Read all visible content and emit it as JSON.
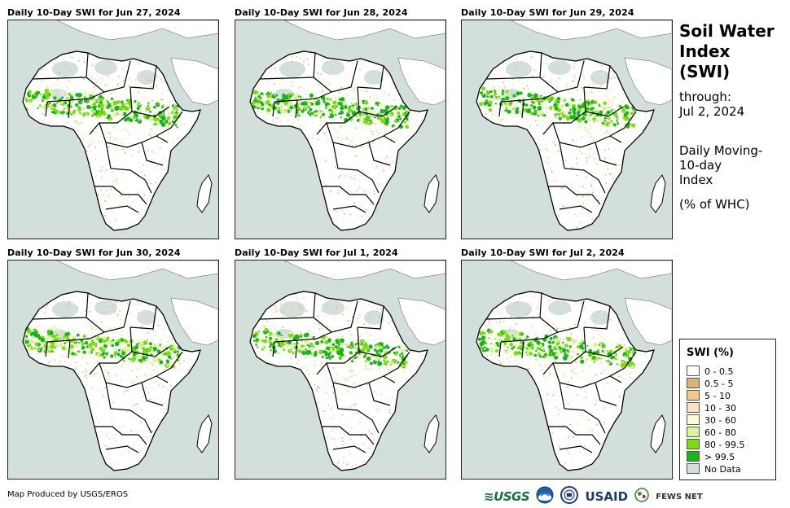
{
  "panels": [
    {
      "title": "Daily 10-Day SWI for Jun 27, 2024"
    },
    {
      "title": "Daily 10-Day SWI for Jun 28, 2024"
    },
    {
      "title": "Daily 10-Day SWI for Jun 29, 2024"
    },
    {
      "title": "Daily 10-Day SWI for Jun 30, 2024"
    },
    {
      "title": "Daily 10-Day SWI for Jul 1, 2024"
    },
    {
      "title": "Daily 10-Day SWI for Jul 2, 2024"
    }
  ],
  "side": {
    "title_line1": "Soil Water",
    "title_line2": "Index",
    "title_line3": "(SWI)",
    "through_label": "through:",
    "through_date": "Jul 2, 2024",
    "desc_line1": "Daily Moving-",
    "desc_line2": "10-day",
    "desc_line3": "Index",
    "units": "(% of WHC)"
  },
  "legend": {
    "title": "SWI (%)",
    "items": [
      {
        "label": "0 - 0.5",
        "color": "#ffffff"
      },
      {
        "label": "0.5 - 5",
        "color": "#d8b47a"
      },
      {
        "label": "5 - 10",
        "color": "#f2c98e"
      },
      {
        "label": "10 - 30",
        "color": "#fbe3bf"
      },
      {
        "label": "30 - 60",
        "color": "#fdfbd2"
      },
      {
        "label": "60 - 80",
        "color": "#d9f59a"
      },
      {
        "label": "80 - 99.5",
        "color": "#7cdc14"
      },
      {
        "label": "> 99.5",
        "color": "#18b418"
      },
      {
        "label": "No Data",
        "color": "#d3dfda"
      }
    ]
  },
  "footer": {
    "credit": "Map Produced by USGS/EROS",
    "logo_usgs": "≋USGS",
    "logo_usaid": "USAID",
    "logo_fews": "FEWS NET"
  },
  "icons": {
    "noaa": "noaa-emblem-icon",
    "seal": "us-seal-icon",
    "globe": "fews-globe-icon"
  }
}
